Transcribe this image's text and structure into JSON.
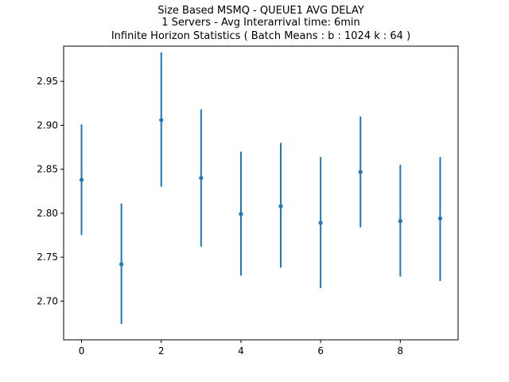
{
  "chart_data": {
    "type": "scatter",
    "title": [
      "Size Based MSMQ - QUEUE1 AVG DELAY",
      "1 Servers -  Avg Interarrival time: 6min",
      "Infinite Horizon Statistics ( Batch Means : b : 1024  k : 64 )"
    ],
    "xlabel": "",
    "ylabel": "",
    "xlim": [
      -0.45,
      9.45
    ],
    "ylim": [
      2.656,
      2.99
    ],
    "xticks": [
      0,
      2,
      4,
      6,
      8
    ],
    "yticks": [
      2.7,
      2.75,
      2.8,
      2.85,
      2.9,
      2.95
    ],
    "ytick_format": 2,
    "grid": false,
    "series": [
      {
        "color": "#1f77b4",
        "x": [
          0,
          1,
          2,
          3,
          4,
          5,
          6,
          7,
          8,
          9
        ],
        "y": [
          2.838,
          2.742,
          2.906,
          2.84,
          2.799,
          2.808,
          2.789,
          2.847,
          2.791,
          2.794
        ],
        "err_low": [
          2.775,
          2.674,
          2.83,
          2.762,
          2.729,
          2.738,
          2.715,
          2.784,
          2.728,
          2.723
        ],
        "err_high": [
          2.901,
          2.811,
          2.983,
          2.918,
          2.87,
          2.88,
          2.864,
          2.91,
          2.855,
          2.864
        ]
      }
    ]
  }
}
